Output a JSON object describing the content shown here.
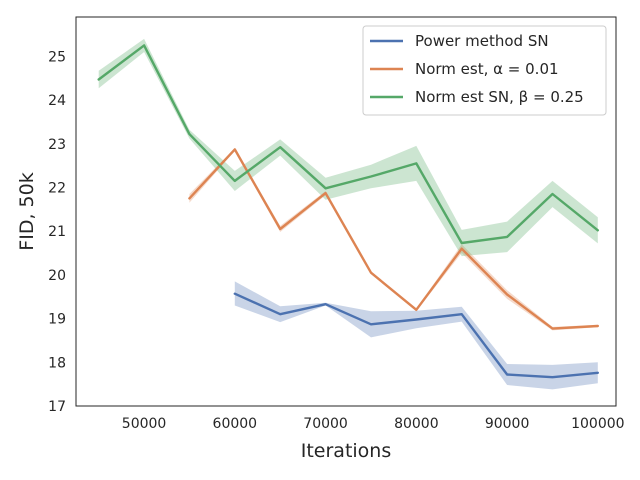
{
  "chart_data": {
    "type": "line",
    "title": "",
    "xlabel": "Iterations",
    "ylabel": "FID, 50k",
    "xlim": [
      42500,
      102000
    ],
    "ylim": [
      17,
      25.9
    ],
    "xticks": [
      50000,
      60000,
      70000,
      80000,
      90000,
      100000
    ],
    "xtick_labels": [
      "50000",
      "60000",
      "70000",
      "80000",
      "90000",
      "100000"
    ],
    "yticks": [
      17,
      18,
      19,
      20,
      21,
      22,
      23,
      24,
      25
    ],
    "ytick_labels": [
      "17",
      "18",
      "19",
      "20",
      "21",
      "22",
      "23",
      "24",
      "25"
    ],
    "grid": false,
    "legend_position": "top-right",
    "series": [
      {
        "name": "Power method SN",
        "color": "#4c72b0",
        "x": [
          60000,
          65000,
          70000,
          75000,
          80000,
          85000,
          90000,
          95000,
          100000
        ],
        "y": [
          19.57,
          19.1,
          19.33,
          18.87,
          18.98,
          19.1,
          17.72,
          17.66,
          17.76
        ],
        "lower": [
          19.3,
          18.92,
          19.3,
          18.57,
          18.78,
          18.93,
          17.48,
          17.38,
          17.52
        ],
        "upper": [
          19.85,
          19.28,
          19.36,
          19.17,
          19.18,
          19.27,
          17.96,
          17.94,
          18.0
        ]
      },
      {
        "name": "Norm est, α = 0.01",
        "color": "#dd8452",
        "x": [
          55000,
          60000,
          65000,
          70000,
          75000,
          80000,
          85000,
          90000,
          95000,
          100000
        ],
        "y": [
          21.75,
          22.87,
          21.05,
          21.87,
          20.05,
          19.2,
          20.6,
          19.55,
          18.77,
          18.83
        ],
        "lower": [
          21.65,
          22.84,
          20.98,
          21.82,
          20.02,
          19.17,
          20.5,
          19.45,
          18.73,
          18.8
        ],
        "upper": [
          21.85,
          22.9,
          21.12,
          21.92,
          20.08,
          19.23,
          20.7,
          19.65,
          18.81,
          18.86
        ]
      },
      {
        "name": "Norm est SN, β = 0.25",
        "color": "#55a868",
        "x": [
          45000,
          50000,
          55000,
          60000,
          65000,
          70000,
          75000,
          80000,
          85000,
          90000,
          95000,
          100000
        ],
        "y": [
          24.47,
          25.25,
          23.22,
          22.15,
          22.92,
          21.98,
          22.25,
          22.55,
          20.73,
          20.87,
          21.85,
          21.02
        ],
        "lower": [
          24.27,
          25.1,
          23.12,
          21.92,
          22.73,
          21.72,
          21.98,
          22.15,
          20.43,
          20.52,
          21.55,
          20.72
        ],
        "upper": [
          24.67,
          25.4,
          23.32,
          22.38,
          23.1,
          22.22,
          22.52,
          22.95,
          21.03,
          21.22,
          22.15,
          21.32
        ]
      }
    ]
  }
}
